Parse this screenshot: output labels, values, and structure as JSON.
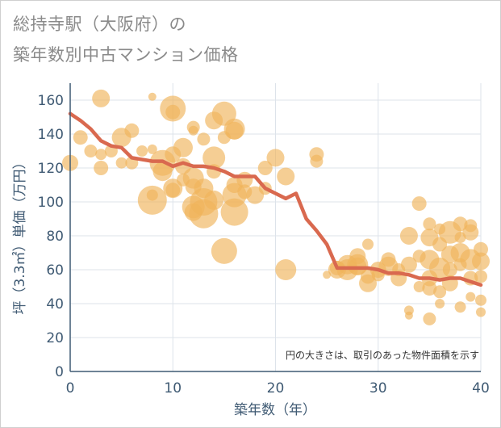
{
  "title_line1": "総持寺駅（大阪府）の",
  "title_line2": "築年数別中古マンション価格",
  "chart_data": {
    "type": "scatter",
    "title": "総持寺駅（大阪府）の築年数別中古マンション価格",
    "xlabel": "築年数（年）",
    "ylabel": "坪（3.3㎡）単価（万円）",
    "xlim": [
      0,
      40
    ],
    "ylim": [
      0,
      170
    ],
    "xticks": [
      0,
      10,
      20,
      30,
      40
    ],
    "yticks": [
      0,
      20,
      40,
      60,
      80,
      100,
      120,
      140,
      160
    ],
    "grid": true,
    "annotation": "円の大きさは、取引のあった物件面積を示す",
    "colors": {
      "bubble": "#f0b45a",
      "line": "#d9694f",
      "grid": "#dde3ea",
      "axis": "#3f5a73"
    },
    "trend_line": {
      "x": [
        0,
        1,
        2,
        3,
        4,
        5,
        6,
        7,
        8,
        9,
        10,
        11,
        12,
        13,
        14,
        15,
        16,
        17,
        18,
        19,
        20,
        21,
        22,
        23,
        24,
        25,
        26,
        27,
        28,
        29,
        30,
        31,
        32,
        33,
        34,
        35,
        36,
        37,
        38,
        39,
        40
      ],
      "y": [
        152,
        148,
        143,
        136,
        133,
        132,
        126,
        125,
        124,
        124,
        121,
        123,
        121,
        121,
        120,
        118,
        115,
        115,
        115,
        108,
        105,
        102,
        105,
        90,
        83,
        75,
        61,
        61,
        61,
        61,
        60,
        58,
        58,
        57,
        55,
        55,
        54,
        55,
        55,
        53,
        51
      ]
    },
    "points": [
      {
        "x": 0,
        "y": 123,
        "s": 10
      },
      {
        "x": 1,
        "y": 138,
        "s": 9
      },
      {
        "x": 2,
        "y": 130,
        "s": 8
      },
      {
        "x": 3,
        "y": 161,
        "s": 11
      },
      {
        "x": 3,
        "y": 120,
        "s": 9
      },
      {
        "x": 3,
        "y": 128,
        "s": 7
      },
      {
        "x": 4,
        "y": 130,
        "s": 8
      },
      {
        "x": 5,
        "y": 138,
        "s": 12
      },
      {
        "x": 5,
        "y": 123,
        "s": 7
      },
      {
        "x": 6,
        "y": 142,
        "s": 9
      },
      {
        "x": 6,
        "y": 123,
        "s": 8
      },
      {
        "x": 7,
        "y": 130,
        "s": 7
      },
      {
        "x": 8,
        "y": 101,
        "s": 18
      },
      {
        "x": 8,
        "y": 162,
        "s": 5
      },
      {
        "x": 8,
        "y": 131,
        "s": 6
      },
      {
        "x": 8,
        "y": 104,
        "s": 7
      },
      {
        "x": 9,
        "y": 118,
        "s": 12
      },
      {
        "x": 9,
        "y": 123,
        "s": 16
      },
      {
        "x": 10,
        "y": 155,
        "s": 16
      },
      {
        "x": 10,
        "y": 153,
        "s": 9
      },
      {
        "x": 10,
        "y": 128,
        "s": 10
      },
      {
        "x": 10,
        "y": 108,
        "s": 12
      },
      {
        "x": 10,
        "y": 107,
        "s": 9
      },
      {
        "x": 11,
        "y": 132,
        "s": 12
      },
      {
        "x": 11,
        "y": 121,
        "s": 10
      },
      {
        "x": 11,
        "y": 113,
        "s": 8
      },
      {
        "x": 12,
        "y": 144,
        "s": 8
      },
      {
        "x": 12,
        "y": 142,
        "s": 6
      },
      {
        "x": 12,
        "y": 114,
        "s": 13
      },
      {
        "x": 12,
        "y": 109,
        "s": 10
      },
      {
        "x": 12,
        "y": 97,
        "s": 14
      },
      {
        "x": 12,
        "y": 94,
        "s": 11
      },
      {
        "x": 13,
        "y": 137,
        "s": 8
      },
      {
        "x": 13,
        "y": 108,
        "s": 12
      },
      {
        "x": 13,
        "y": 100,
        "s": 17
      },
      {
        "x": 13,
        "y": 93,
        "s": 18
      },
      {
        "x": 14,
        "y": 148,
        "s": 11
      },
      {
        "x": 14,
        "y": 126,
        "s": 14
      },
      {
        "x": 14,
        "y": 118,
        "s": 9
      },
      {
        "x": 14,
        "y": 101,
        "s": 12
      },
      {
        "x": 15,
        "y": 152,
        "s": 15
      },
      {
        "x": 15,
        "y": 138,
        "s": 8
      },
      {
        "x": 15,
        "y": 71,
        "s": 16
      },
      {
        "x": 16,
        "y": 143,
        "s": 13
      },
      {
        "x": 16,
        "y": 142,
        "s": 11
      },
      {
        "x": 16,
        "y": 110,
        "s": 10
      },
      {
        "x": 16,
        "y": 104,
        "s": 15
      },
      {
        "x": 16,
        "y": 94,
        "s": 17
      },
      {
        "x": 17,
        "y": 113,
        "s": 10
      },
      {
        "x": 17,
        "y": 106,
        "s": 9
      },
      {
        "x": 18,
        "y": 104,
        "s": 11
      },
      {
        "x": 19,
        "y": 120,
        "s": 9
      },
      {
        "x": 19,
        "y": 108,
        "s": 8
      },
      {
        "x": 20,
        "y": 126,
        "s": 11
      },
      {
        "x": 21,
        "y": 115,
        "s": 11
      },
      {
        "x": 21,
        "y": 60,
        "s": 13
      },
      {
        "x": 24,
        "y": 128,
        "s": 9
      },
      {
        "x": 24,
        "y": 124,
        "s": 8
      },
      {
        "x": 25,
        "y": 57,
        "s": 5
      },
      {
        "x": 26,
        "y": 61,
        "s": 9
      },
      {
        "x": 26,
        "y": 60,
        "s": 11
      },
      {
        "x": 27,
        "y": 63,
        "s": 12
      },
      {
        "x": 27,
        "y": 60,
        "s": 13
      },
      {
        "x": 28,
        "y": 68,
        "s": 10
      },
      {
        "x": 28,
        "y": 63,
        "s": 13
      },
      {
        "x": 28,
        "y": 62,
        "s": 11
      },
      {
        "x": 29,
        "y": 75,
        "s": 7
      },
      {
        "x": 29,
        "y": 56,
        "s": 9
      },
      {
        "x": 29,
        "y": 52,
        "s": 11
      },
      {
        "x": 30,
        "y": 60,
        "s": 10
      },
      {
        "x": 30,
        "y": 57,
        "s": 8
      },
      {
        "x": 31,
        "y": 66,
        "s": 9
      },
      {
        "x": 31,
        "y": 62,
        "s": 12
      },
      {
        "x": 32,
        "y": 60,
        "s": 8
      },
      {
        "x": 32,
        "y": 55,
        "s": 10
      },
      {
        "x": 33,
        "y": 80,
        "s": 11
      },
      {
        "x": 33,
        "y": 63,
        "s": 10
      },
      {
        "x": 33,
        "y": 36,
        "s": 6
      },
      {
        "x": 33,
        "y": 33,
        "s": 5
      },
      {
        "x": 34,
        "y": 99,
        "s": 9
      },
      {
        "x": 34,
        "y": 68,
        "s": 8
      },
      {
        "x": 34,
        "y": 50,
        "s": 7
      },
      {
        "x": 35,
        "y": 87,
        "s": 8
      },
      {
        "x": 35,
        "y": 79,
        "s": 11
      },
      {
        "x": 35,
        "y": 66,
        "s": 12
      },
      {
        "x": 35,
        "y": 55,
        "s": 10
      },
      {
        "x": 35,
        "y": 49,
        "s": 9
      },
      {
        "x": 35,
        "y": 31,
        "s": 8
      },
      {
        "x": 36,
        "y": 84,
        "s": 7
      },
      {
        "x": 36,
        "y": 75,
        "s": 9
      },
      {
        "x": 36,
        "y": 61,
        "s": 13
      },
      {
        "x": 36,
        "y": 47,
        "s": 8
      },
      {
        "x": 36,
        "y": 40,
        "s": 6
      },
      {
        "x": 37,
        "y": 82,
        "s": 14
      },
      {
        "x": 37,
        "y": 69,
        "s": 11
      },
      {
        "x": 37,
        "y": 60,
        "s": 9
      },
      {
        "x": 37,
        "y": 52,
        "s": 10
      },
      {
        "x": 38,
        "y": 87,
        "s": 9
      },
      {
        "x": 38,
        "y": 79,
        "s": 7
      },
      {
        "x": 38,
        "y": 70,
        "s": 12
      },
      {
        "x": 38,
        "y": 63,
        "s": 8
      },
      {
        "x": 38,
        "y": 38,
        "s": 7
      },
      {
        "x": 39,
        "y": 86,
        "s": 8
      },
      {
        "x": 39,
        "y": 82,
        "s": 10
      },
      {
        "x": 39,
        "y": 66,
        "s": 13
      },
      {
        "x": 39,
        "y": 55,
        "s": 9
      },
      {
        "x": 39,
        "y": 44,
        "s": 6
      },
      {
        "x": 40,
        "y": 72,
        "s": 9
      },
      {
        "x": 40,
        "y": 65,
        "s": 11
      },
      {
        "x": 40,
        "y": 56,
        "s": 8
      },
      {
        "x": 40,
        "y": 42,
        "s": 7
      },
      {
        "x": 40,
        "y": 35,
        "s": 6
      }
    ]
  }
}
